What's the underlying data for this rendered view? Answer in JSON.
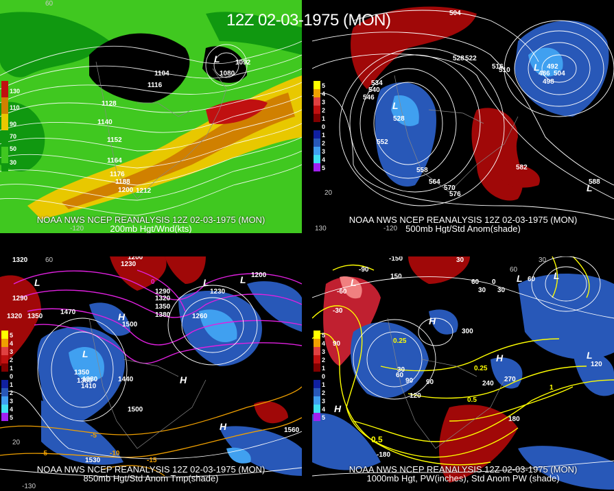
{
  "header": {
    "title": "12Z 02-03-1975 (MON)"
  },
  "panels": [
    {
      "id": "p200",
      "caption_line1": "NOAA NWS NCEP REANALYSIS 12Z 02-03-1975 (MON)",
      "caption_line2": "200mb Hgt/Wnd(kts)",
      "legend": [
        "130",
        "110",
        "90",
        "70",
        "50",
        "30"
      ],
      "contour_labels": [
        "1104",
        "1116",
        "1128",
        "1140",
        "1152",
        "1164",
        "1176",
        "1188",
        "1200",
        "1212",
        "1080",
        "1092"
      ],
      "systems": [
        "L"
      ],
      "lon_labels": [
        "-120",
        "60"
      ]
    },
    {
      "id": "p500",
      "caption_line1": "NOAA NWS NCEP REANALYSIS 12Z 02-03-1975 (MON)",
      "caption_line2": "500mb Hgt/Std Anom(shade)",
      "legend": [
        "5",
        "4",
        "3",
        "2",
        "1",
        "0",
        "1",
        "2",
        "3",
        "4",
        "5"
      ],
      "contour_labels": [
        "504",
        "528",
        "522",
        "516",
        "510",
        "534",
        "540",
        "546",
        "552",
        "558",
        "564",
        "570",
        "576",
        "582",
        "588",
        "528",
        "492",
        "486",
        "504",
        "498",
        "20"
      ],
      "systems": [
        "L",
        "L",
        "L",
        "L"
      ],
      "lon_labels": [
        "-120",
        "130"
      ]
    },
    {
      "id": "p850",
      "caption_line1": "NOAA NWS NCEP REANALYSIS 12Z 02-03-1975 (MON)",
      "caption_line2": "850mb Hgt/Std Anom Tmp(shade)",
      "legend": [
        "5",
        "4",
        "3",
        "2",
        "1",
        "0",
        "1",
        "2",
        "3",
        "4",
        "5"
      ],
      "contour_labels": [
        "1320",
        "1290",
        "1320",
        "1350",
        "1380",
        "1470",
        "1230",
        "1200",
        "1230",
        "1290",
        "1320",
        "1350",
        "1380",
        "1260",
        "1350",
        "1380",
        "1410",
        "1440",
        "1500",
        "1500",
        "1530",
        "1560",
        "1200",
        "-5",
        "-10",
        "-15",
        "-5",
        "0",
        "20"
      ],
      "systems": [
        "L",
        "L",
        "L",
        "L",
        "H",
        "H",
        "H"
      ],
      "lon_labels": [
        "-130",
        "60"
      ]
    },
    {
      "id": "pw",
      "caption_line1": "NOAA NWS NCEP REANALYSIS 12Z 02-03-1975 (MON)",
      "caption_line2": "1000mb Hgt, PW(inches), Std Anom PW (shade)",
      "legend": [
        "5",
        "4",
        "3",
        "2",
        "1",
        "0",
        "1",
        "2",
        "3",
        "4",
        "5"
      ],
      "contour_labels": [
        "-150",
        "-90",
        "-60",
        "-30",
        "90",
        "150",
        "60",
        "30",
        "0",
        "30",
        "60",
        "30",
        "120",
        "240",
        "270",
        "300",
        "90",
        "120",
        "180",
        "-180",
        "0.25",
        "0.25",
        "0.5",
        "0.5",
        "1",
        "30",
        "60",
        "90"
      ],
      "systems": [
        "L",
        "L",
        "L",
        "H",
        "H",
        "H",
        "L"
      ],
      "lon_labels": [
        "60",
        "30"
      ]
    }
  ],
  "colors": {
    "background": "#000000",
    "wind_green_dark": "#109810",
    "wind_green": "#40c820",
    "wind_yellow": "#e8c800",
    "wind_orange": "#d08000",
    "wind_red": "#c01010",
    "anom_red": "#a00808",
    "anom_blue": "#2858b8",
    "anom_light_blue": "#40a0f0",
    "thickness_magenta": "#e020e0",
    "pw_yellow": "#ffff00",
    "temp_orange": "#f0a000"
  }
}
